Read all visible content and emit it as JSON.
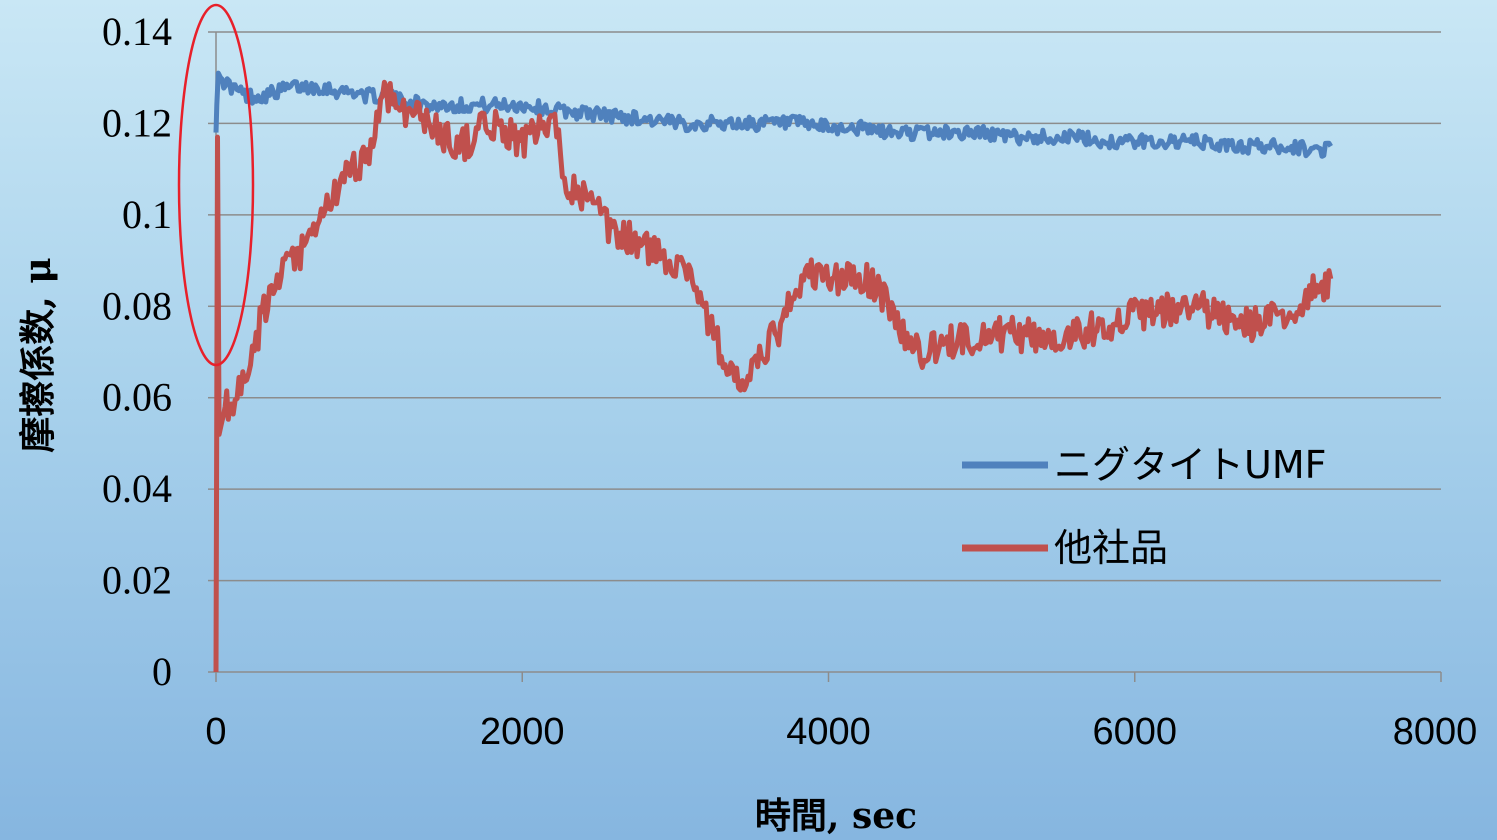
{
  "chart_data": {
    "type": "line",
    "xlabel": "時間, sec",
    "ylabel": "摩擦係数, μ",
    "xlim": [
      0,
      8000
    ],
    "ylim": [
      0,
      0.14
    ],
    "x_ticks": [
      0,
      2000,
      4000,
      6000,
      8000
    ],
    "x_tick_labels": [
      "0",
      "2000",
      "4000",
      "6000",
      "8000"
    ],
    "y_ticks": [
      0,
      0.02,
      0.04,
      0.06,
      0.08,
      0.1,
      0.12,
      0.14
    ],
    "y_tick_labels": [
      "0",
      "0.02",
      "0.04",
      "0.06",
      "0.08",
      "0.1",
      "0.12",
      "0.14"
    ],
    "grid": "horizontal",
    "legend_position": "right",
    "colors": {
      "series_blue": "#4f81bd",
      "series_red": "#c0504d",
      "annotation": "#e8202a",
      "grid": "#8c8c8c",
      "axis": "#8c8c8c"
    },
    "series": [
      {
        "name": "ニグタイトUMF",
        "color": "#4f81bd",
        "x": [
          0,
          5,
          15,
          30,
          60,
          100,
          150,
          200,
          300,
          400,
          500,
          600,
          700,
          800,
          900,
          1000,
          1100,
          1200,
          1400,
          1600,
          1800,
          2000,
          2200,
          2500,
          2800,
          3000,
          3200,
          3400,
          3600,
          3800,
          4000,
          4200,
          4400,
          4600,
          4800,
          5000,
          5200,
          5400,
          5600,
          5800,
          6000,
          6200,
          6400,
          6600,
          6800,
          7000,
          7200,
          7280
        ],
        "values": [
          0.118,
          0.124,
          0.131,
          0.13,
          0.129,
          0.128,
          0.127,
          0.126,
          0.126,
          0.127,
          0.128,
          0.128,
          0.128,
          0.127,
          0.127,
          0.126,
          0.126,
          0.125,
          0.124,
          0.124,
          0.124,
          0.124,
          0.123,
          0.122,
          0.121,
          0.12,
          0.12,
          0.12,
          0.12,
          0.12,
          0.119,
          0.119,
          0.118,
          0.118,
          0.118,
          0.118,
          0.117,
          0.117,
          0.117,
          0.116,
          0.116,
          0.116,
          0.116,
          0.115,
          0.115,
          0.115,
          0.114,
          0.115
        ]
      },
      {
        "name": "他社品",
        "color": "#c0504d",
        "x": [
          0,
          5,
          10,
          20,
          40,
          60,
          80,
          100,
          150,
          200,
          250,
          300,
          400,
          500,
          600,
          700,
          800,
          900,
          1000,
          1050,
          1100,
          1200,
          1300,
          1400,
          1500,
          1600,
          1700,
          1800,
          1900,
          2000,
          2100,
          2200,
          2300,
          2400,
          2500,
          2600,
          2700,
          2800,
          2900,
          3000,
          3100,
          3200,
          3300,
          3400,
          3500,
          3600,
          3700,
          3800,
          3900,
          4000,
          4100,
          4200,
          4300,
          4400,
          4500,
          4600,
          4700,
          4800,
          4900,
          5000,
          5200,
          5400,
          5600,
          5800,
          6000,
          6200,
          6400,
          6600,
          6800,
          7000,
          7200,
          7280
        ],
        "values": [
          0,
          0.06,
          0.117,
          0.052,
          0.055,
          0.058,
          0.059,
          0.059,
          0.061,
          0.063,
          0.07,
          0.078,
          0.085,
          0.09,
          0.093,
          0.1,
          0.106,
          0.11,
          0.114,
          0.12,
          0.127,
          0.124,
          0.122,
          0.12,
          0.117,
          0.115,
          0.118,
          0.12,
          0.118,
          0.116,
          0.118,
          0.12,
          0.107,
          0.104,
          0.1,
          0.095,
          0.095,
          0.093,
          0.091,
          0.09,
          0.088,
          0.078,
          0.07,
          0.063,
          0.065,
          0.071,
          0.076,
          0.085,
          0.087,
          0.086,
          0.086,
          0.086,
          0.085,
          0.08,
          0.073,
          0.07,
          0.071,
          0.072,
          0.073,
          0.074,
          0.074,
          0.073,
          0.074,
          0.076,
          0.078,
          0.079,
          0.08,
          0.077,
          0.076,
          0.078,
          0.084,
          0.086
        ]
      }
    ],
    "annotations": [
      {
        "type": "ellipse",
        "label": "",
        "x_center": 0,
        "y_center": 0.1
      }
    ]
  }
}
